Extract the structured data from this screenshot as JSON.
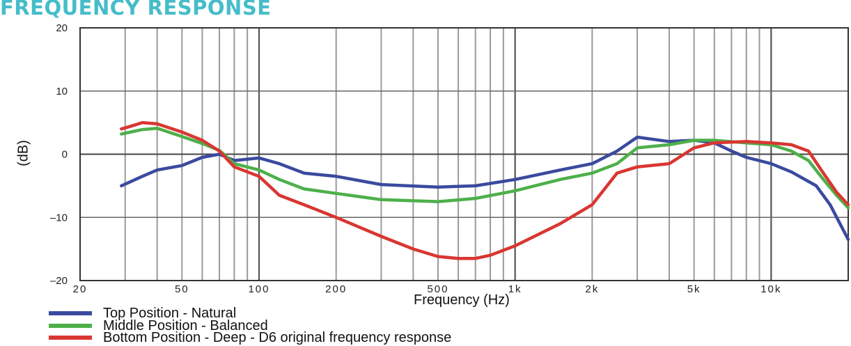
{
  "title": "FREQUENCY RESPONSE",
  "chart_data": {
    "type": "line",
    "title": "FREQUENCY RESPONSE",
    "xlabel": "Frequency (Hz)",
    "ylabel": "(dB)",
    "x_scale": "log",
    "xlim": [
      20,
      20000
    ],
    "ylim": [
      -20,
      20
    ],
    "grid": true,
    "legend_position": "bottom-left",
    "x_ticks": [
      20,
      50,
      100,
      200,
      500,
      1000,
      2000,
      5000,
      10000
    ],
    "x_tick_labels": [
      "20",
      "50",
      "100",
      "200",
      "500",
      "1k",
      "2k",
      "5k",
      "10k"
    ],
    "y_ticks": [
      -20,
      -10,
      0,
      10,
      20
    ],
    "y_tick_labels": [
      "–20",
      "–10",
      "0",
      "10",
      "20"
    ],
    "series": [
      {
        "name": "Top Position -  Natural",
        "color": "#3a4a9e",
        "x": [
          29,
          35,
          40,
          50,
          60,
          70,
          80,
          100,
          120,
          150,
          200,
          300,
          500,
          700,
          1000,
          1500,
          2000,
          2500,
          3000,
          4000,
          5000,
          6000,
          7000,
          8000,
          10000,
          12000,
          15000,
          17000,
          20000
        ],
        "y": [
          -5,
          -3.5,
          -2.5,
          -1.8,
          -0.5,
          0,
          -1,
          -0.6,
          -1.5,
          -3,
          -3.5,
          -4.8,
          -5.2,
          -5,
          -4,
          -2.5,
          -1.5,
          0.5,
          2.7,
          2,
          2.2,
          1.8,
          0.5,
          -0.5,
          -1.5,
          -2.8,
          -5,
          -8,
          -13.5
        ]
      },
      {
        "name": "Middle Position - Balanced",
        "color": "#4db04a",
        "x": [
          29,
          35,
          40,
          50,
          60,
          70,
          80,
          100,
          120,
          150,
          200,
          300,
          500,
          700,
          1000,
          1500,
          2000,
          2500,
          3000,
          4000,
          5000,
          6000,
          8000,
          10000,
          12000,
          14000,
          16000,
          18000,
          20000
        ],
        "y": [
          3.2,
          3.9,
          4.1,
          2.8,
          1.7,
          0.6,
          -1.5,
          -2.5,
          -4,
          -5.5,
          -6.2,
          -7.2,
          -7.5,
          -7,
          -5.8,
          -4,
          -3,
          -1.5,
          1,
          1.5,
          2.2,
          2.2,
          1.8,
          1.5,
          0.5,
          -1,
          -4,
          -6.5,
          -8.5
        ]
      },
      {
        "name": "Bottom Position - Deep - D6 original frequency response",
        "color": "#d93631",
        "x": [
          29,
          32,
          35,
          40,
          50,
          60,
          70,
          80,
          100,
          120,
          150,
          200,
          300,
          400,
          500,
          600,
          700,
          800,
          1000,
          1500,
          2000,
          2500,
          3000,
          4000,
          5000,
          6000,
          8000,
          10000,
          12000,
          14000,
          16000,
          18000,
          20000
        ],
        "y": [
          4,
          4.5,
          5,
          4.8,
          3.5,
          2.2,
          0.5,
          -2,
          -3.5,
          -6.5,
          -8,
          -10,
          -13,
          -15,
          -16.2,
          -16.5,
          -16.5,
          -16,
          -14.5,
          -11,
          -8,
          -3,
          -2,
          -1.5,
          1,
          1.8,
          2,
          1.8,
          1.5,
          0.5,
          -3,
          -6,
          -8
        ]
      }
    ]
  },
  "legend": [
    {
      "label": "Top Position -  Natural",
      "color": "#3a4a9e"
    },
    {
      "label": "Middle Position - Balanced",
      "color": "#4db04a"
    },
    {
      "label": "Bottom Position - Deep - D6 original frequency response",
      "color": "#d93631"
    }
  ]
}
